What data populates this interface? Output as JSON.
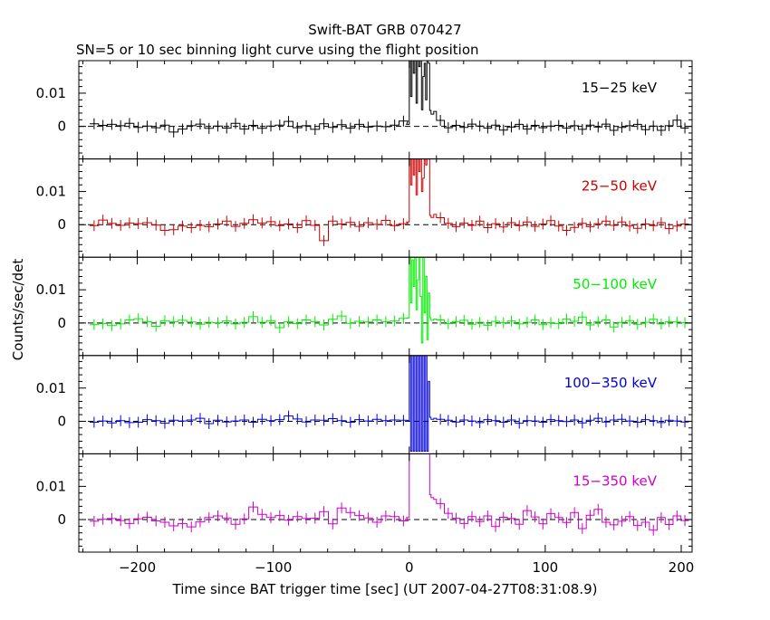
{
  "title": "Swift-BAT GRB 070427",
  "subtitle": "SN=5 or 10 sec binning light curve using the flight position",
  "xlabel": "Time since BAT trigger time [sec] (UT 2007-04-27T08:31:08.9)",
  "ylabel": "Counts/sec/det",
  "colors": {
    "axis": "#000000",
    "band_15_25": "#000000",
    "band_25_50": "#cc0000",
    "band_50_100": "#00ee00",
    "band_100_350": "#0000dd",
    "band_15_350": "#cc00cc"
  },
  "chart_data": {
    "type": "line",
    "xlim": [
      -243,
      208
    ],
    "ylim": [
      -0.0098,
      0.0198
    ],
    "x_ticks": [
      -200,
      -100,
      0,
      100,
      200
    ],
    "x_tick_labels": [
      "−200",
      "−100",
      "0",
      "100",
      "200"
    ],
    "y_ticks": [
      0,
      0.01
    ],
    "y_tick_labels": [
      "0",
      "0.01"
    ],
    "zero_line": "dashed",
    "panels": [
      {
        "name": "15−25 keV",
        "color_key": "band_15_25",
        "pre": [
          0.0008,
          0.0003,
          0.0006,
          0.0002,
          0.0009,
          -0.0003,
          0.0001,
          -0.0004,
          0.0004,
          -0.0017,
          -0.0008,
          0.0002,
          0.0007,
          -0.0006,
          0.0001,
          -0.0005,
          0.0009,
          -0.0008,
          0.0003,
          -0.0006,
          0.0001,
          0.0004,
          0.0015,
          -0.0004,
          0.0002,
          -0.0009,
          0.0008,
          -0.0003,
          0.0005,
          -0.0005,
          0.0006,
          -0.0002,
          0.0001,
          -0.0001,
          0.0004,
          0.0016
        ],
        "burst_x": [
          -2,
          0,
          1,
          2,
          3,
          4,
          5,
          6,
          7,
          8,
          9,
          10,
          11,
          12,
          13,
          14,
          15,
          16,
          18
        ],
        "burst_y": [
          0.0006,
          0.022,
          0.009,
          0.022,
          0.016,
          0.022,
          0.007,
          0.022,
          0.018,
          0.021,
          0.005,
          0.015,
          0.019,
          0.008,
          0.022,
          0.019,
          0.0048,
          0.0037,
          0.0045
        ],
        "post": [
          0.0018,
          -0.0004,
          0.0003,
          -0.0003,
          0.0007,
          0.0001,
          -0.0005,
          0.0004,
          -0.0011,
          -0.0002,
          0.0006,
          -0.0008,
          0.0003,
          -0.0004,
          0.0001,
          0.0003,
          -0.0005,
          0.0002,
          -0.0009,
          0.0004,
          -0.0002,
          0.0007,
          -0.0012,
          -0.0003,
          0.0002,
          0.0006,
          -0.001,
          0.0001,
          -0.0012,
          0.0002,
          0.0019,
          -0.0005
        ]
      },
      {
        "name": "25−50 keV",
        "color_key": "band_25_50",
        "pre": [
          -0.0003,
          0.0014,
          0.0004,
          -0.0002,
          0.0005,
          0.0003,
          0.0006,
          -0.0001,
          -0.0017,
          -0.0015,
          -0.0004,
          -0.0009,
          -0.0002,
          -0.0006,
          0.0002,
          0.0011,
          -0.0005,
          0.0004,
          0.0015,
          0.0005,
          0.0009,
          -0.0003,
          0.0002,
          -0.0009,
          0.0012,
          -0.0002,
          -0.0048,
          0.0011,
          0.0002,
          0.0007,
          -0.0005,
          0.0006,
          0.0001,
          0.0013,
          -0.0003,
          0.0003
        ],
        "burst_x": [
          -2,
          0,
          1,
          2,
          3,
          4,
          5,
          6,
          7,
          8,
          9,
          10,
          11,
          12,
          13,
          14,
          15,
          16,
          18
        ],
        "burst_y": [
          0.0008,
          0.021,
          0.012,
          0.021,
          0.015,
          0.021,
          0.009,
          0.021,
          0.016,
          0.02,
          0.01,
          0.014,
          0.021,
          0.018,
          0.02,
          0.021,
          0.0028,
          0.0022,
          0.0031
        ],
        "post": [
          0.0021,
          0.0004,
          -0.0006,
          0.0005,
          -0.0002,
          0.0011,
          -0.0009,
          0.0003,
          -0.0007,
          0.0006,
          -0.0003,
          0.0008,
          -0.0005,
          0.0002,
          0.0012,
          -0.0004,
          -0.0017,
          -0.0008,
          0.0004,
          -0.0006,
          0.0003,
          0.0011,
          -0.0002,
          0.0008,
          -0.0004,
          -0.0011,
          0.0002,
          -0.0003,
          0.0006,
          -0.0012,
          -0.0004,
          0.0002
        ]
      },
      {
        "name": "50−100 keV",
        "color_key": "band_50_100",
        "pre": [
          -0.0005,
          -0.0002,
          -0.0008,
          -0.0003,
          0.0009,
          0.0013,
          0.0004,
          -0.001,
          0.0007,
          0.0004,
          0.0008,
          0.0003,
          -0.0004,
          0.0002,
          0.0001,
          0.0006,
          -0.0003,
          0.0002,
          0.0019,
          0.0002,
          0.0007,
          -0.0014,
          0.0004,
          -0.0002,
          0.0009,
          0.0004,
          -0.0006,
          0.0011,
          0.0021,
          -0.0001,
          0.0005,
          0.0003,
          0.0009,
          0.0004,
          0.0006,
          0.0014
        ],
        "burst_x": [
          -2,
          0,
          1,
          2,
          3,
          4,
          5,
          6,
          7,
          8,
          9,
          10,
          11,
          12,
          13,
          14,
          15,
          16,
          18
        ],
        "burst_y": [
          0.0015,
          0.021,
          0.006,
          0.019,
          0.011,
          0.021,
          0.004,
          0.013,
          0.021,
          0.008,
          -0.006,
          0.021,
          0.003,
          0.014,
          -0.005,
          0.009,
          0.0016,
          0.0008,
          0.0012
        ],
        "post": [
          0.0009,
          -0.0002,
          0.0004,
          0.0008,
          -0.0004,
          0.0002,
          -0.0007,
          0.0005,
          0.0001,
          0.0006,
          -0.0003,
          0.0002,
          0.0009,
          -0.0005,
          0.0001,
          -0.0002,
          0.0012,
          0.0005,
          0.0018,
          -0.0006,
          0.0004,
          0.0009,
          -0.0012,
          0.0002,
          0.0007,
          -0.0004,
          0.0002,
          0.0011,
          -0.0003,
          0.0004,
          0.0003,
          0.0001
        ]
      },
      {
        "name": "100−350 keV",
        "color_key": "band_100_350",
        "pre": [
          -0.0003,
          0.0001,
          -0.0005,
          0.0002,
          -0.0004,
          -0.0003,
          0.0005,
          0.0002,
          -0.0006,
          0.0003,
          0.0001,
          0.0004,
          0.0009,
          -0.0007,
          0.0003,
          -0.0002,
          0.0001,
          0.0004,
          -0.0003,
          0.0006,
          0.0002,
          0.0005,
          0.0016,
          0.0007,
          -0.0002,
          0.0004,
          0.0003,
          0.0008,
          0.0002,
          -0.0003,
          0.0005,
          0.0001,
          0.0006,
          0.0002,
          0.0004,
          0.0003
        ],
        "burst_x": [
          -2,
          0,
          1,
          2,
          3,
          4,
          5,
          6,
          7,
          8,
          9,
          10,
          11,
          12,
          13,
          14,
          15,
          16,
          18
        ],
        "burst_y": [
          0.0002,
          0.021,
          -0.009,
          0.021,
          -0.009,
          0.021,
          -0.009,
          0.021,
          -0.009,
          0.021,
          -0.009,
          0.021,
          -0.009,
          0.021,
          -0.009,
          0.012,
          0.0012,
          0.0006,
          0.0009
        ],
        "post": [
          0.0006,
          0.0003,
          -0.0002,
          0.0004,
          0.0001,
          -0.0004,
          0.0005,
          0.0002,
          -0.0003,
          0.0004,
          -0.0006,
          0.0002,
          0.0001,
          -0.0003,
          0.0005,
          0.0002,
          -0.0001,
          0.0004,
          -0.0005,
          0.0003,
          0.0009,
          -0.0002,
          0.0004,
          0.0006,
          0.0001,
          -0.0003,
          0.0005,
          0.0002,
          -0.0004,
          0.0003,
          0.0001,
          -0.0002
        ]
      },
      {
        "name": "15−350 keV",
        "color_key": "band_15_350",
        "pre": [
          -0.0005,
          0.0001,
          0.0003,
          -0.0003,
          -0.0012,
          0.0002,
          0.0007,
          -0.0004,
          -0.0008,
          -0.0019,
          -0.0012,
          -0.0022,
          -0.0007,
          0.0006,
          0.0011,
          0.0005,
          -0.0014,
          0.0002,
          0.0038,
          0.0016,
          0.0006,
          0.0012,
          -0.0002,
          0.0009,
          0.0003,
          0.0004,
          0.0024,
          -0.0013,
          0.0035,
          0.0021,
          0.0012,
          0.0005,
          -0.0008,
          0.0011,
          0.0009,
          -0.0004
        ],
        "burst_x": [
          -2,
          0,
          1,
          2,
          3,
          4,
          5,
          6,
          7,
          8,
          9,
          10,
          11,
          12,
          13,
          14,
          15,
          16,
          18
        ],
        "burst_y": [
          0.0006,
          0.021,
          0.021,
          0.021,
          0.021,
          0.021,
          0.021,
          0.021,
          0.021,
          0.021,
          0.021,
          0.021,
          0.021,
          0.021,
          0.021,
          0.021,
          0.0075,
          0.0066,
          0.0061
        ],
        "post": [
          0.0048,
          0.0019,
          0.0004,
          -0.0012,
          0.0009,
          -0.0006,
          0.0011,
          -0.0021,
          0.0007,
          0.0003,
          -0.0014,
          0.0027,
          0.0008,
          -0.0013,
          0.0018,
          0.0006,
          -0.0009,
          0.0021,
          -0.0027,
          0.0013,
          0.0031,
          -0.0008,
          -0.0016,
          -0.0005,
          0.0009,
          -0.0018,
          -0.0008,
          -0.0032,
          0.0006,
          -0.0015,
          0.0011,
          -0.0003
        ]
      }
    ]
  }
}
